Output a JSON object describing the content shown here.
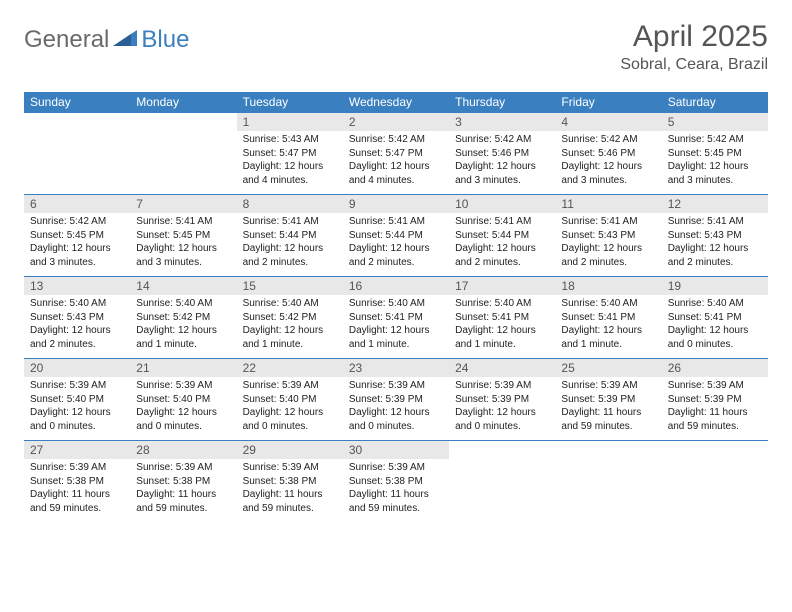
{
  "logo": {
    "part1": "General",
    "part2": "Blue"
  },
  "title": "April 2025",
  "location": "Sobral, Ceara, Brazil",
  "colors": {
    "header_bg": "#3a7fbf",
    "header_text": "#ffffff",
    "daynum_bg": "#e8e8e8",
    "border": "#3a7fbf",
    "title_color": "#555555",
    "logo_gray": "#6a6a6a",
    "logo_blue": "#3a7fbf"
  },
  "weekdays": [
    "Sunday",
    "Monday",
    "Tuesday",
    "Wednesday",
    "Thursday",
    "Friday",
    "Saturday"
  ],
  "weeks": [
    [
      null,
      null,
      {
        "n": "1",
        "sr": "5:43 AM",
        "ss": "5:47 PM",
        "dl": "12 hours and 4 minutes."
      },
      {
        "n": "2",
        "sr": "5:42 AM",
        "ss": "5:47 PM",
        "dl": "12 hours and 4 minutes."
      },
      {
        "n": "3",
        "sr": "5:42 AM",
        "ss": "5:46 PM",
        "dl": "12 hours and 3 minutes."
      },
      {
        "n": "4",
        "sr": "5:42 AM",
        "ss": "5:46 PM",
        "dl": "12 hours and 3 minutes."
      },
      {
        "n": "5",
        "sr": "5:42 AM",
        "ss": "5:45 PM",
        "dl": "12 hours and 3 minutes."
      }
    ],
    [
      {
        "n": "6",
        "sr": "5:42 AM",
        "ss": "5:45 PM",
        "dl": "12 hours and 3 minutes."
      },
      {
        "n": "7",
        "sr": "5:41 AM",
        "ss": "5:45 PM",
        "dl": "12 hours and 3 minutes."
      },
      {
        "n": "8",
        "sr": "5:41 AM",
        "ss": "5:44 PM",
        "dl": "12 hours and 2 minutes."
      },
      {
        "n": "9",
        "sr": "5:41 AM",
        "ss": "5:44 PM",
        "dl": "12 hours and 2 minutes."
      },
      {
        "n": "10",
        "sr": "5:41 AM",
        "ss": "5:44 PM",
        "dl": "12 hours and 2 minutes."
      },
      {
        "n": "11",
        "sr": "5:41 AM",
        "ss": "5:43 PM",
        "dl": "12 hours and 2 minutes."
      },
      {
        "n": "12",
        "sr": "5:41 AM",
        "ss": "5:43 PM",
        "dl": "12 hours and 2 minutes."
      }
    ],
    [
      {
        "n": "13",
        "sr": "5:40 AM",
        "ss": "5:43 PM",
        "dl": "12 hours and 2 minutes."
      },
      {
        "n": "14",
        "sr": "5:40 AM",
        "ss": "5:42 PM",
        "dl": "12 hours and 1 minute."
      },
      {
        "n": "15",
        "sr": "5:40 AM",
        "ss": "5:42 PM",
        "dl": "12 hours and 1 minute."
      },
      {
        "n": "16",
        "sr": "5:40 AM",
        "ss": "5:41 PM",
        "dl": "12 hours and 1 minute."
      },
      {
        "n": "17",
        "sr": "5:40 AM",
        "ss": "5:41 PM",
        "dl": "12 hours and 1 minute."
      },
      {
        "n": "18",
        "sr": "5:40 AM",
        "ss": "5:41 PM",
        "dl": "12 hours and 1 minute."
      },
      {
        "n": "19",
        "sr": "5:40 AM",
        "ss": "5:41 PM",
        "dl": "12 hours and 0 minutes."
      }
    ],
    [
      {
        "n": "20",
        "sr": "5:39 AM",
        "ss": "5:40 PM",
        "dl": "12 hours and 0 minutes."
      },
      {
        "n": "21",
        "sr": "5:39 AM",
        "ss": "5:40 PM",
        "dl": "12 hours and 0 minutes."
      },
      {
        "n": "22",
        "sr": "5:39 AM",
        "ss": "5:40 PM",
        "dl": "12 hours and 0 minutes."
      },
      {
        "n": "23",
        "sr": "5:39 AM",
        "ss": "5:39 PM",
        "dl": "12 hours and 0 minutes."
      },
      {
        "n": "24",
        "sr": "5:39 AM",
        "ss": "5:39 PM",
        "dl": "12 hours and 0 minutes."
      },
      {
        "n": "25",
        "sr": "5:39 AM",
        "ss": "5:39 PM",
        "dl": "11 hours and 59 minutes."
      },
      {
        "n": "26",
        "sr": "5:39 AM",
        "ss": "5:39 PM",
        "dl": "11 hours and 59 minutes."
      }
    ],
    [
      {
        "n": "27",
        "sr": "5:39 AM",
        "ss": "5:38 PM",
        "dl": "11 hours and 59 minutes."
      },
      {
        "n": "28",
        "sr": "5:39 AM",
        "ss": "5:38 PM",
        "dl": "11 hours and 59 minutes."
      },
      {
        "n": "29",
        "sr": "5:39 AM",
        "ss": "5:38 PM",
        "dl": "11 hours and 59 minutes."
      },
      {
        "n": "30",
        "sr": "5:39 AM",
        "ss": "5:38 PM",
        "dl": "11 hours and 59 minutes."
      },
      null,
      null,
      null
    ]
  ],
  "labels": {
    "sunrise": "Sunrise:",
    "sunset": "Sunset:",
    "daylight": "Daylight:"
  }
}
